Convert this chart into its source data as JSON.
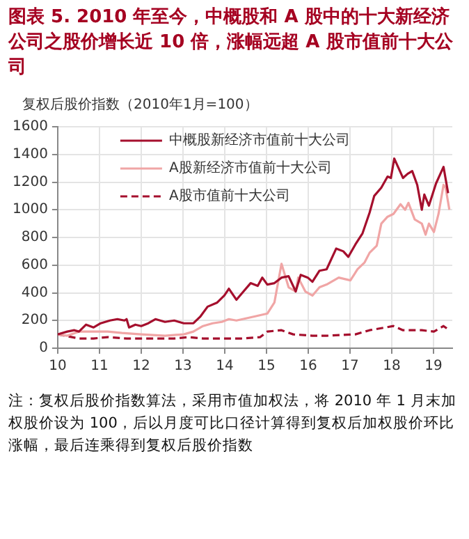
{
  "chart_data": {
    "type": "line",
    "title": "图表 5.  2010 年至今，中概股和 A 股中的十大新经济公司之股价增长近 10 倍，涨幅远超 A 股市值前十大公司",
    "ylabel": "复权后股价指数（2010年1月=100）",
    "xlim": [
      10,
      19.45
    ],
    "xticks": [
      10,
      11,
      12,
      13,
      14,
      15,
      16,
      17,
      18,
      19
    ],
    "ylim": [
      0,
      1600
    ],
    "yticks": [
      0,
      200,
      400,
      600,
      800,
      1000,
      1200,
      1400,
      1600
    ],
    "grid": true,
    "legend": "top left",
    "marker": "none",
    "series": [
      {
        "name": "中概股新经济市值前十大公司",
        "color": "#a50f2d",
        "line_style": "solid",
        "x": [
          10,
          10.23,
          10.4,
          10.51,
          10.68,
          10.86,
          11.03,
          11.25,
          11.43,
          11.6,
          11.65,
          11.71,
          11.86,
          12.0,
          12.17,
          12.34,
          12.57,
          12.79,
          13.02,
          13.25,
          13.42,
          13.59,
          13.82,
          13.99,
          14.1,
          14.28,
          14.45,
          14.62,
          14.79,
          14.9,
          15.02,
          15.19,
          15.36,
          15.53,
          15.7,
          15.82,
          15.99,
          16.1,
          16.27,
          16.44,
          16.67,
          16.84,
          16.96,
          17.13,
          17.3,
          17.47,
          17.58,
          17.75,
          17.9,
          17.98,
          18.06,
          18.15,
          18.27,
          18.38,
          18.49,
          18.61,
          18.72,
          18.78,
          18.89,
          19.06,
          19.24,
          19.35
        ],
        "values": [
          100,
          120,
          130,
          120,
          170,
          150,
          180,
          200,
          210,
          200,
          210,
          150,
          170,
          160,
          180,
          210,
          190,
          200,
          180,
          180,
          230,
          300,
          330,
          380,
          430,
          350,
          410,
          470,
          450,
          510,
          460,
          470,
          510,
          520,
          410,
          530,
          510,
          480,
          560,
          570,
          720,
          700,
          660,
          750,
          830,
          980,
          1100,
          1160,
          1240,
          1230,
          1370,
          1310,
          1230,
          1260,
          1280,
          1180,
          1000,
          1110,
          1030,
          1190,
          1310,
          1120
        ]
      },
      {
        "name": "A股新经济市值前十大公司",
        "color": "#f0a5a5",
        "line_style": "solid",
        "x": [
          10,
          10.23,
          10.51,
          10.86,
          11.2,
          11.54,
          12.0,
          12.57,
          13.02,
          13.25,
          13.48,
          13.71,
          13.93,
          14.1,
          14.28,
          14.73,
          15.02,
          15.19,
          15.36,
          15.53,
          15.7,
          15.76,
          15.93,
          16.1,
          16.27,
          16.44,
          16.73,
          17.01,
          17.18,
          17.35,
          17.47,
          17.64,
          17.75,
          17.9,
          18.04,
          18.21,
          18.32,
          18.4,
          18.55,
          18.72,
          18.81,
          18.89,
          19.01,
          19.12,
          19.24,
          19.29,
          19.38
        ],
        "values": [
          100,
          90,
          120,
          120,
          120,
          110,
          100,
          90,
          100,
          120,
          160,
          180,
          190,
          210,
          200,
          230,
          250,
          330,
          610,
          440,
          410,
          510,
          410,
          380,
          440,
          460,
          510,
          490,
          570,
          620,
          690,
          740,
          900,
          950,
          970,
          1040,
          1000,
          1050,
          930,
          900,
          820,
          900,
          840,
          970,
          1180,
          1160,
          1000
        ]
      },
      {
        "name": "A股市值前十大公司",
        "color": "#a50f2d",
        "line_style": "dashed",
        "x": [
          10,
          10.51,
          10.86,
          11.2,
          11.65,
          12.22,
          12.79,
          13.14,
          13.48,
          13.93,
          14.39,
          14.85,
          15.02,
          15.36,
          15.64,
          16.1,
          16.44,
          17.13,
          17.47,
          18.04,
          18.27,
          18.72,
          19.01,
          19.24,
          19.38
        ],
        "values": [
          100,
          70,
          70,
          80,
          70,
          70,
          70,
          80,
          70,
          70,
          70,
          80,
          120,
          130,
          100,
          90,
          90,
          100,
          130,
          160,
          130,
          130,
          120,
          160,
          130
        ]
      }
    ],
    "annotations": [
      "注：复权后股价指数算法，采用市值加权法，将 2010 年 1 月末加权股价设为 100，后以月度可比口径计算得到复权后加权股价环比涨幅，最后连乘得到复权后股价指数"
    ]
  }
}
